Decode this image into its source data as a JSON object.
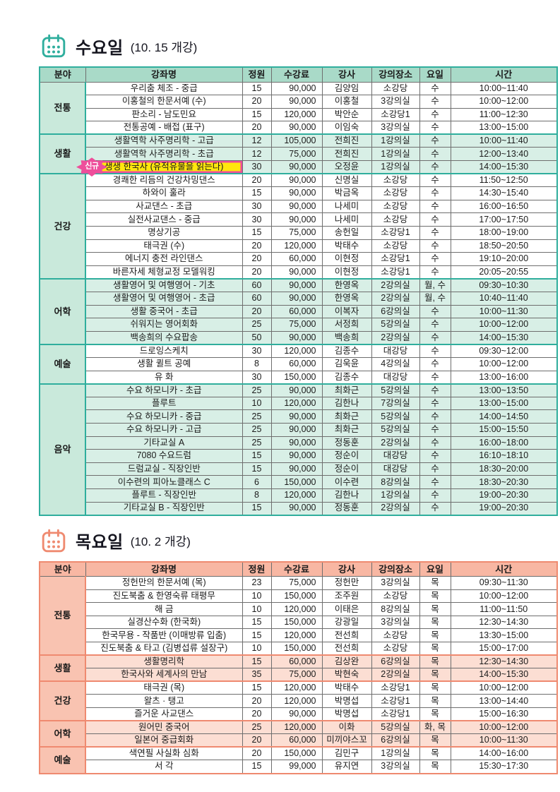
{
  "colors": {
    "teal_accent": "#2fae9d",
    "salmon_accent": "#ef8a70",
    "highlight_yellow": "#ffe70d",
    "highlight_pink": "#ee4e9b"
  },
  "tables": [
    {
      "title": "수요일",
      "subtitle": "(10. 15 개강)",
      "theme": "teal",
      "headers": [
        "분야",
        "강좌명",
        "정원",
        "수강료",
        "강사",
        "강의장소",
        "요일",
        "시간"
      ],
      "sections": [
        {
          "category": "전통",
          "tinted": false,
          "rows": [
            {
              "name": "우리춤 체조 - 중급",
              "capacity": "15",
              "fee": "90,000",
              "instructor": "김양임",
              "room": "소강당",
              "day": "수",
              "time": "10:00~11:40"
            },
            {
              "name": "이홍철의 한문서예 (수)",
              "capacity": "20",
              "fee": "90,000",
              "instructor": "이홍철",
              "room": "3강의실",
              "day": "수",
              "time": "10:00~12:00"
            },
            {
              "name": "판소리 - 남도민요",
              "capacity": "15",
              "fee": "120,000",
              "instructor": "박안순",
              "room": "소강당1",
              "day": "수",
              "time": "11:00~12:30"
            },
            {
              "name": "전통공예 - 배접 (표구)",
              "capacity": "20",
              "fee": "90,000",
              "instructor": "이임숙",
              "room": "3강의실",
              "day": "수",
              "time": "13:00~15:00"
            }
          ]
        },
        {
          "category": "생활",
          "tinted": true,
          "rows": [
            {
              "name": "생활역학 사주명리학 - 고급",
              "capacity": "12",
              "fee": "105,000",
              "instructor": "전희진",
              "room": "1강의실",
              "day": "수",
              "time": "10:00~11:40"
            },
            {
              "name": "생활역학 사주명리학 - 초급",
              "capacity": "12",
              "fee": "75,000",
              "instructor": "전희진",
              "room": "1강의실",
              "day": "수",
              "time": "12:00~13:40"
            },
            {
              "name": "생생 한국사 (유적유물을 읽는다)",
              "capacity": "30",
              "fee": "90,000",
              "instructor": "오정윤",
              "room": "1강의실",
              "day": "수",
              "time": "14:00~15:30",
              "highlight": true,
              "badge": "신규"
            }
          ]
        },
        {
          "category": "건강",
          "tinted": false,
          "rows": [
            {
              "name": "경쾌한 리듬의 건강차밍댄스",
              "capacity": "20",
              "fee": "90,000",
              "instructor": "신명실",
              "room": "소강당",
              "day": "수",
              "time": "11:50~12:50"
            },
            {
              "name": "하와이 훌라",
              "capacity": "15",
              "fee": "90,000",
              "instructor": "박금옥",
              "room": "소강당",
              "day": "수",
              "time": "14:30~15:40"
            },
            {
              "name": "사교댄스 - 초급",
              "capacity": "30",
              "fee": "90,000",
              "instructor": "나세미",
              "room": "소강당",
              "day": "수",
              "time": "16:00~16:50"
            },
            {
              "name": "실전사교댄스 - 중급",
              "capacity": "30",
              "fee": "90,000",
              "instructor": "나세미",
              "room": "소강당",
              "day": "수",
              "time": "17:00~17:50"
            },
            {
              "name": "명상기공",
              "capacity": "15",
              "fee": "75,000",
              "instructor": "송헌일",
              "room": "소강당1",
              "day": "수",
              "time": "18:00~19:00"
            },
            {
              "name": "태극권 (수)",
              "capacity": "20",
              "fee": "120,000",
              "instructor": "박태수",
              "room": "소강당",
              "day": "수",
              "time": "18:50~20:50"
            },
            {
              "name": "에너지 충전 라인댄스",
              "capacity": "20",
              "fee": "60,000",
              "instructor": "이현정",
              "room": "소강당1",
              "day": "수",
              "time": "19:10~20:00"
            },
            {
              "name": "바른자세 체형교정 모델워킹",
              "capacity": "20",
              "fee": "90,000",
              "instructor": "이현정",
              "room": "소강당1",
              "day": "수",
              "time": "20:05~20:55"
            }
          ]
        },
        {
          "category": "어학",
          "tinted": true,
          "rows": [
            {
              "name": "생활영어 및 여행영어 - 기초",
              "capacity": "60",
              "fee": "90,000",
              "instructor": "한영옥",
              "room": "2강의실",
              "day": "월, 수",
              "time": "09:30~10:30"
            },
            {
              "name": "생활영어 및 여행영어 - 초급",
              "capacity": "60",
              "fee": "90,000",
              "instructor": "한영옥",
              "room": "2강의실",
              "day": "월, 수",
              "time": "10:40~11:40"
            },
            {
              "name": "생활 중국어 - 초급",
              "capacity": "20",
              "fee": "60,000",
              "instructor": "이복자",
              "room": "6강의실",
              "day": "수",
              "time": "10:00~11:30"
            },
            {
              "name": "쉬워지는 영어회화",
              "capacity": "25",
              "fee": "75,000",
              "instructor": "서정희",
              "room": "5강의실",
              "day": "수",
              "time": "10:00~12:00"
            },
            {
              "name": "백송희의 수요팝송",
              "capacity": "50",
              "fee": "90,000",
              "instructor": "백송희",
              "room": "2강의실",
              "day": "수",
              "time": "14:00~15:30"
            }
          ]
        },
        {
          "category": "예술",
          "tinted": false,
          "rows": [
            {
              "name": "드로잉스케치",
              "capacity": "30",
              "fee": "120,000",
              "instructor": "김종수",
              "room": "대강당",
              "day": "수",
              "time": "09:30~12:00"
            },
            {
              "name": "생활 퀼트 공예",
              "capacity": "8",
              "fee": "60,000",
              "instructor": "김욱윤",
              "room": "4강의실",
              "day": "수",
              "time": "10:00~12:00"
            },
            {
              "name": "유 화",
              "capacity": "30",
              "fee": "150,000",
              "instructor": "김종수",
              "room": "대강당",
              "day": "수",
              "time": "13:00~16:00"
            }
          ]
        },
        {
          "category": "음악",
          "tinted": true,
          "rows": [
            {
              "name": "수요 하모니카 - 초급",
              "capacity": "25",
              "fee": "90,000",
              "instructor": "최화근",
              "room": "5강의실",
              "day": "수",
              "time": "13:00~13:50"
            },
            {
              "name": "플루트",
              "capacity": "10",
              "fee": "120,000",
              "instructor": "김한나",
              "room": "7강의실",
              "day": "수",
              "time": "13:00~15:00"
            },
            {
              "name": "수요 하모니카 - 중급",
              "capacity": "25",
              "fee": "90,000",
              "instructor": "최화근",
              "room": "5강의실",
              "day": "수",
              "time": "14:00~14:50"
            },
            {
              "name": "수요 하모니카 - 고급",
              "capacity": "25",
              "fee": "90,000",
              "instructor": "최화근",
              "room": "5강의실",
              "day": "수",
              "time": "15:00~15:50"
            },
            {
              "name": "기타교실 A",
              "capacity": "25",
              "fee": "90,000",
              "instructor": "정동훈",
              "room": "2강의실",
              "day": "수",
              "time": "16:00~18:00"
            },
            {
              "name": "7080 수요드럼",
              "capacity": "15",
              "fee": "90,000",
              "instructor": "정순이",
              "room": "대강당",
              "day": "수",
              "time": "16:10~18:10"
            },
            {
              "name": "드럼교실 - 직장인반",
              "capacity": "15",
              "fee": "90,000",
              "instructor": "정순이",
              "room": "대강당",
              "day": "수",
              "time": "18:30~20:00"
            },
            {
              "name": "이수련의 피아노클래스 C",
              "capacity": "6",
              "fee": "150,000",
              "instructor": "이수련",
              "room": "8강의실",
              "day": "수",
              "time": "18:30~20:30"
            },
            {
              "name": "플루트 - 직장인반",
              "capacity": "8",
              "fee": "120,000",
              "instructor": "김한나",
              "room": "1강의실",
              "day": "수",
              "time": "19:00~20:30"
            },
            {
              "name": "기타교실 B - 직장인반",
              "capacity": "15",
              "fee": "90,000",
              "instructor": "정동훈",
              "room": "2강의실",
              "day": "수",
              "time": "19:00~20:30"
            }
          ]
        }
      ]
    },
    {
      "title": "목요일",
      "subtitle": "(10. 2 개강)",
      "theme": "salmon",
      "headers": [
        "분야",
        "강좌명",
        "정원",
        "수강료",
        "강사",
        "강의장소",
        "요일",
        "시간"
      ],
      "sections": [
        {
          "category": "전통",
          "tinted": false,
          "rows": [
            {
              "name": "정헌만의 한문서예 (목)",
              "capacity": "23",
              "fee": "75,000",
              "instructor": "정헌만",
              "room": "3강의실",
              "day": "목",
              "time": "09:30~11:30"
            },
            {
              "name": "진도북춤 & 한영숙류 태평무",
              "capacity": "10",
              "fee": "150,000",
              "instructor": "조주원",
              "room": "소강당",
              "day": "목",
              "time": "10:00~12:00"
            },
            {
              "name": "해 금",
              "capacity": "10",
              "fee": "120,000",
              "instructor": "이태은",
              "room": "8강의실",
              "day": "목",
              "time": "11:00~11:50"
            },
            {
              "name": "실경산수화 (한국화)",
              "capacity": "15",
              "fee": "150,000",
              "instructor": "강광일",
              "room": "3강의실",
              "day": "목",
              "time": "12:30~14:30"
            },
            {
              "name": "한국무용 - 작품반 (이매방류 입춤)",
              "capacity": "15",
              "fee": "120,000",
              "instructor": "전선희",
              "room": "소강당",
              "day": "목",
              "time": "13:30~15:00"
            },
            {
              "name": "진도북춤 & 타고 (김병섭류 설장구)",
              "capacity": "10",
              "fee": "150,000",
              "instructor": "전선희",
              "room": "소강당",
              "day": "목",
              "time": "15:00~17:00"
            }
          ]
        },
        {
          "category": "생활",
          "tinted": true,
          "rows": [
            {
              "name": "생활명리학",
              "capacity": "15",
              "fee": "60,000",
              "instructor": "김상완",
              "room": "6강의실",
              "day": "목",
              "time": "12:30~14:30"
            },
            {
              "name": "한국사와 세계사의 만남",
              "capacity": "35",
              "fee": "75,000",
              "instructor": "박현숙",
              "room": "2강의실",
              "day": "목",
              "time": "14:00~15:30"
            }
          ]
        },
        {
          "category": "건강",
          "tinted": false,
          "rows": [
            {
              "name": "태극권 (목)",
              "capacity": "15",
              "fee": "120,000",
              "instructor": "박태수",
              "room": "소강당1",
              "day": "목",
              "time": "10:00~12:00"
            },
            {
              "name": "왈츠 · 탱고",
              "capacity": "20",
              "fee": "120,000",
              "instructor": "박명섭",
              "room": "소강당1",
              "day": "목",
              "time": "13:00~14:40"
            },
            {
              "name": "즐거운 사교댄스",
              "capacity": "20",
              "fee": "90,000",
              "instructor": "박명섭",
              "room": "소강당1",
              "day": "목",
              "time": "15:00~16:30"
            }
          ]
        },
        {
          "category": "어학",
          "tinted": true,
          "rows": [
            {
              "name": "원어민 중국어",
              "capacity": "25",
              "fee": "120,000",
              "instructor": "이화",
              "room": "5강의실",
              "day": "화, 목",
              "time": "10:00~12:00"
            },
            {
              "name": "일본어 중급회화",
              "capacity": "20",
              "fee": "60,000",
              "instructor": "미끼야스꼬",
              "room": "6강의실",
              "day": "목",
              "time": "10:00~11:30"
            }
          ]
        },
        {
          "category": "예술",
          "tinted": false,
          "rows": [
            {
              "name": "색연필 사실화 심화",
              "capacity": "20",
              "fee": "150,000",
              "instructor": "김민구",
              "room": "1강의실",
              "day": "목",
              "time": "14:00~16:00"
            },
            {
              "name": "서 각",
              "capacity": "15",
              "fee": "99,000",
              "instructor": "유지연",
              "room": "3강의실",
              "day": "목",
              "time": "15:30~17:30"
            }
          ]
        }
      ]
    }
  ]
}
